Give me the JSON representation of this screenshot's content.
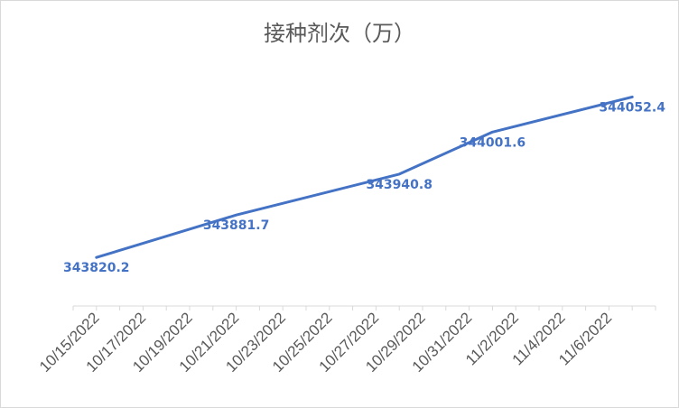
{
  "chart_data": {
    "type": "line",
    "title": "接种剂次（万）",
    "x_ticks": [
      "10/15/2022",
      "10/17/2022",
      "10/19/2022",
      "10/21/2022",
      "10/23/2022",
      "10/25/2022",
      "10/27/2022",
      "10/29/2022",
      "10/31/2022",
      "11/2/2022",
      "11/4/2022",
      "11/6/2022"
    ],
    "x_range": [
      "10/14/2022",
      "11/8/2022"
    ],
    "series": [
      {
        "x": [
          "10/15/2022",
          "10/21/2022",
          "10/28/2022",
          "11/1/2022",
          "11/7/2022"
        ],
        "values": [
          343820.2,
          343881.7,
          343940.8,
          344001.6,
          344052.4
        ],
        "data_labels": [
          "343820.2",
          "343881.7",
          "343940.8",
          "344001.6",
          "344052.4"
        ],
        "color": "#4472c4"
      }
    ],
    "ylim": [
      343750,
      344100
    ],
    "grid": false,
    "legend": "none"
  }
}
